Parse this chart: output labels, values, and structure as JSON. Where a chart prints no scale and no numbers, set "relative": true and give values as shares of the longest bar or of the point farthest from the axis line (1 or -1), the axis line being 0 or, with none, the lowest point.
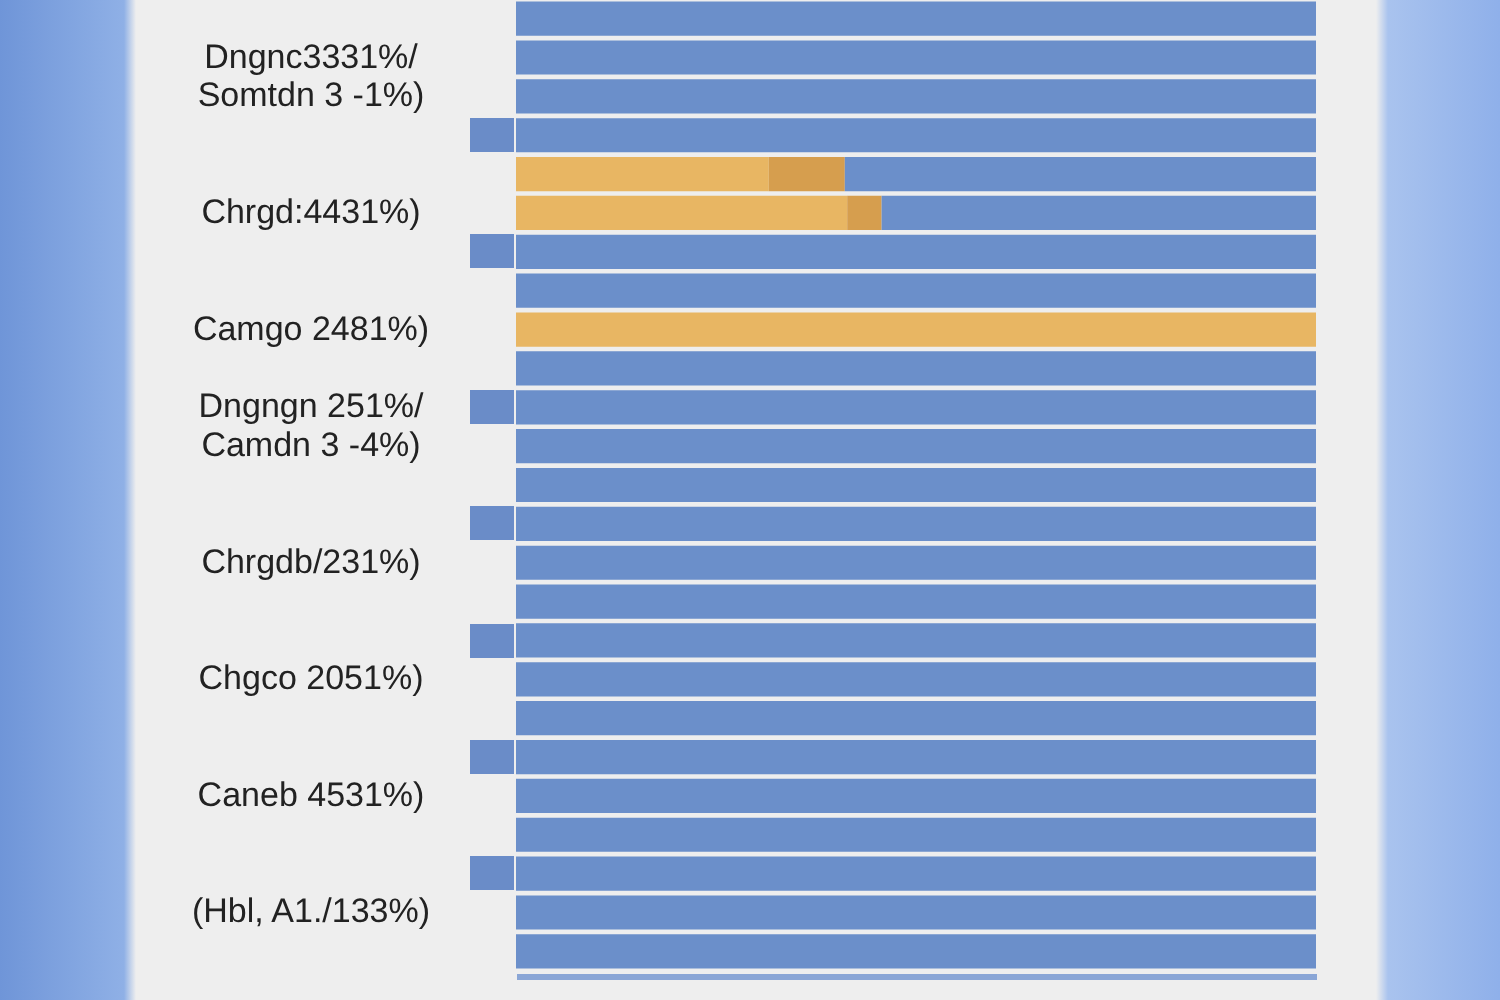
{
  "chart_data": {
    "type": "bar",
    "orientation": "horizontal",
    "stacked": true,
    "relative": true,
    "categories": [
      null,
      "Dngnc3331%/",
      "Somtdn 3 -1%)",
      null,
      null,
      "Chrgd:4431%)",
      null,
      null,
      "Camgo 2481%)",
      null,
      "Dngngn 251%/",
      "Camdn 3 -4%)",
      null,
      null,
      "Chrgdb/231%)",
      null,
      null,
      "Chgco 2051%)",
      null,
      null,
      "Caneb 4531%)",
      null,
      null,
      "(Hbl, A1./133%)",
      null
    ],
    "series": [
      {
        "color": "#e8b663",
        "values": [
          null,
          null,
          null,
          null,
          0.316,
          0.414,
          null,
          null,
          1,
          null,
          null,
          null,
          null,
          null,
          null,
          null,
          null,
          null,
          null,
          null,
          null,
          null,
          null,
          null,
          null
        ]
      },
      {
        "color": "#d69e4e",
        "values": [
          null,
          null,
          null,
          null,
          0.095,
          0.043,
          null,
          null,
          null,
          null,
          null,
          null,
          null,
          null,
          null,
          null,
          null,
          null,
          null,
          null,
          null,
          null,
          null,
          null,
          null
        ]
      },
      {
        "color": "#6b8fca",
        "values": [
          1,
          1,
          1,
          1,
          0.589,
          0.543,
          1,
          1,
          null,
          1,
          1,
          1,
          1,
          1,
          1,
          1,
          1,
          1,
          1,
          1,
          1,
          1,
          1,
          1,
          1
        ]
      }
    ]
  }
}
